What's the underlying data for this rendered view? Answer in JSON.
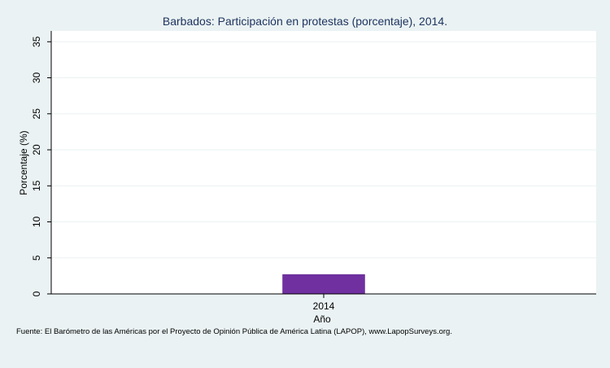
{
  "chart_data": {
    "type": "bar",
    "title": "Barbados: Participación en protestas (porcentaje), 2014.",
    "xlabel": "Año",
    "ylabel": "Porcentaje (%)",
    "categories": [
      "2014"
    ],
    "values": [
      2.7
    ],
    "ylim": [
      0,
      36.5
    ],
    "yticks": [
      "0",
      "5",
      "10",
      "15",
      "20",
      "25",
      "30",
      "35"
    ],
    "grid": true,
    "legend": "none",
    "colors": {
      "bar": "#7030a0",
      "background": "#eaf2f3",
      "plot_background": "#ffffff",
      "grid": "#eaf2f3",
      "title": "#1f3560"
    }
  },
  "source_note": "Fuente: El Barómetro de las Américas por el Proyecto de Opinión Pública de América Latina (LAPOP), www.LapopSurveys.org."
}
